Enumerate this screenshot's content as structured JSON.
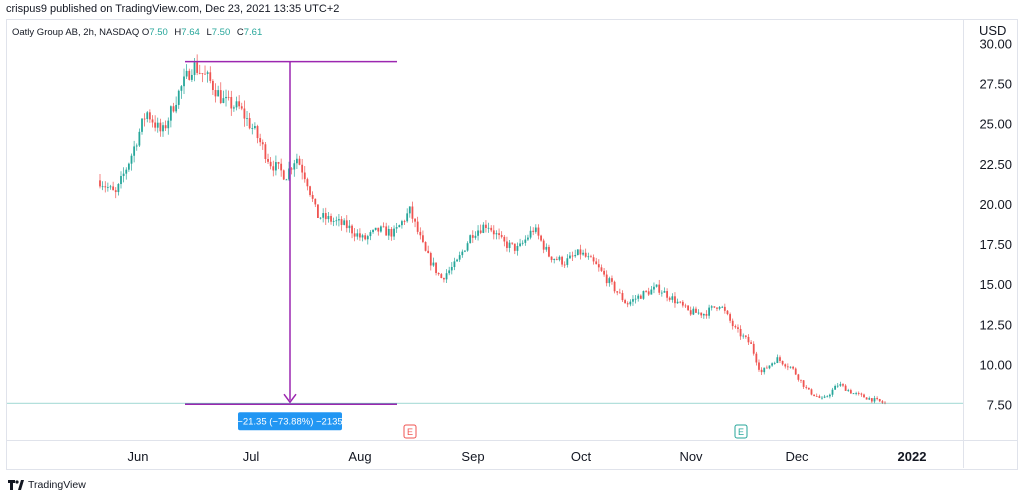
{
  "header": {
    "publisher_text": "crispus9 published on TradingView.com, Dec 23, 2021 13:35 UTC+2"
  },
  "legend": {
    "symbol": "Oatly Group AB, 2h, NASDAQ",
    "open_label": "O",
    "open_value": "7.50",
    "high_label": "H",
    "high_value": "7.64",
    "low_label": "L",
    "low_value": "7.50",
    "close_label": "C",
    "close_value": "7.61"
  },
  "currency": "USD",
  "footer": {
    "brand": "TradingView"
  },
  "colors": {
    "up": "#26a69a",
    "down": "#ef5350",
    "measure": "#9c27b0",
    "measure_label_bg": "#2196f3",
    "earnings": "#ef5350",
    "earnings_future": "#26a69a"
  },
  "chart_data": {
    "type": "candlestick",
    "y_ticks": [
      "30.00",
      "27.50",
      "25.00",
      "22.50",
      "20.00",
      "17.50",
      "15.00",
      "12.50",
      "10.00",
      "7.50"
    ],
    "ylim": [
      6.6,
      30.5
    ],
    "x_ticks": [
      "Jun",
      "Jul",
      "Aug",
      "Sep",
      "Oct",
      "Nov",
      "Dec",
      "2022"
    ],
    "last_price": 7.61,
    "price_path": [
      [
        0,
        21.5
      ],
      [
        3,
        20.6
      ],
      [
        6,
        23.0
      ],
      [
        9,
        25.8
      ],
      [
        12,
        24.4
      ],
      [
        15,
        26.8
      ],
      [
        18,
        28.7
      ],
      [
        21,
        27.8
      ],
      [
        24,
        26.4
      ],
      [
        27,
        26.0
      ],
      [
        30,
        24.5
      ],
      [
        33,
        22.6
      ],
      [
        36,
        21.8
      ],
      [
        38,
        23.0
      ],
      [
        40,
        21.6
      ],
      [
        42,
        19.3
      ],
      [
        45,
        19.0
      ],
      [
        48,
        18.6
      ],
      [
        51,
        17.8
      ],
      [
        54,
        18.4
      ],
      [
        57,
        18.2
      ],
      [
        60,
        19.6
      ],
      [
        63,
        17.0
      ],
      [
        66,
        15.4
      ],
      [
        69,
        16.3
      ],
      [
        72,
        18.2
      ],
      [
        75,
        18.8
      ],
      [
        78,
        17.6
      ],
      [
        81,
        17.2
      ],
      [
        84,
        18.5
      ],
      [
        87,
        16.8
      ],
      [
        90,
        16.4
      ],
      [
        93,
        17.0
      ],
      [
        96,
        16.2
      ],
      [
        99,
        15.0
      ],
      [
        102,
        13.8
      ],
      [
        105,
        14.4
      ],
      [
        108,
        14.8
      ],
      [
        111,
        14.1
      ],
      [
        114,
        13.3
      ],
      [
        117,
        13.2
      ],
      [
        120,
        13.8
      ],
      [
        123,
        12.2
      ],
      [
        126,
        11.3
      ],
      [
        128,
        9.5
      ],
      [
        131,
        10.4
      ],
      [
        134,
        9.8
      ],
      [
        137,
        8.4
      ],
      [
        140,
        7.8
      ],
      [
        143,
        8.8
      ],
      [
        146,
        8.2
      ],
      [
        149,
        7.9
      ],
      [
        152,
        7.6
      ]
    ],
    "measure": {
      "from_price": 28.9,
      "to_price": 7.55,
      "label": "−21.35 (−73.88%) −2135"
    },
    "earnings_markers": [
      {
        "text": "E",
        "month_pos": "mid-August",
        "style": "past"
      },
      {
        "text": "E",
        "month_pos": "mid-November",
        "style": "future"
      }
    ]
  }
}
